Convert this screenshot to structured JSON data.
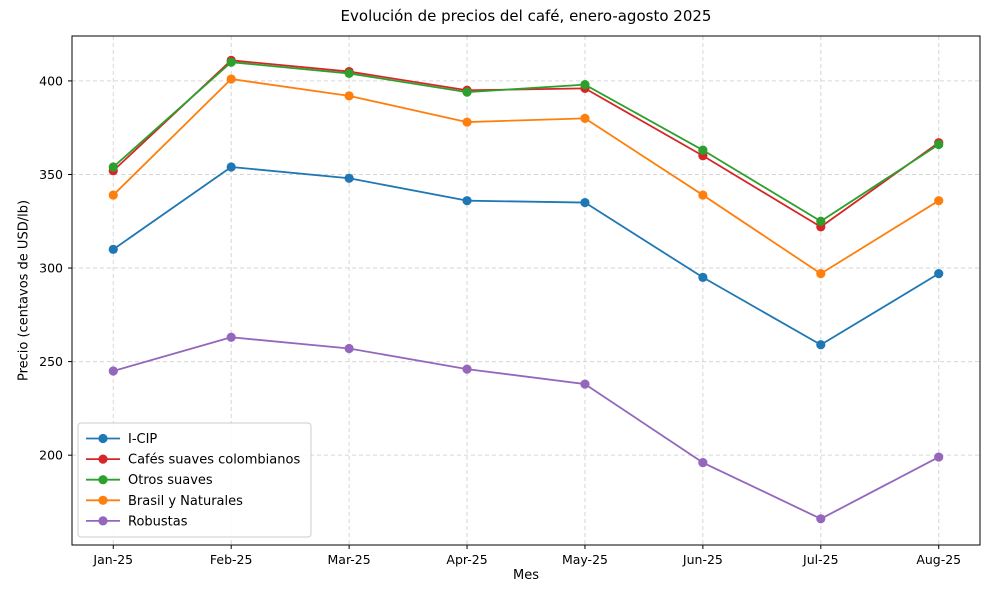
{
  "chart_data": {
    "type": "line",
    "title": "Evolución de precios del café, enero-agosto 2025",
    "xlabel": "Mes",
    "ylabel": "Precio (centavos de USD/lb)",
    "categories": [
      "Jan-25",
      "Feb-25",
      "Mar-25",
      "Apr-25",
      "May-25",
      "Jun-25",
      "Jul-25",
      "Aug-25"
    ],
    "series": [
      {
        "name": "I-CIP",
        "color": "#1f77b4",
        "values": [
          310,
          354,
          348,
          336,
          335,
          295,
          259,
          297
        ]
      },
      {
        "name": "Cafés suaves colombianos",
        "color": "#d62728",
        "values": [
          352,
          411,
          405,
          395,
          396,
          360,
          322,
          367
        ]
      },
      {
        "name": "Otros suaves",
        "color": "#2ca02c",
        "values": [
          354,
          410,
          404,
          394,
          398,
          363,
          325,
          366
        ]
      },
      {
        "name": "Brasil y Naturales",
        "color": "#ff7f0e",
        "values": [
          339,
          401,
          392,
          378,
          380,
          339,
          297,
          336
        ]
      },
      {
        "name": "Robustas",
        "color": "#9467bd",
        "values": [
          245,
          263,
          257,
          246,
          238,
          196,
          166,
          199
        ]
      }
    ],
    "ylim": [
      152,
      424
    ],
    "yticks": [
      200,
      250,
      300,
      350,
      400
    ],
    "grid": "dashed",
    "grid_color": "#d6d6d6",
    "axis_color": "#000000",
    "legend_position": "lower-left",
    "legend_border_color": "#cccccc",
    "background": "#ffffff"
  }
}
